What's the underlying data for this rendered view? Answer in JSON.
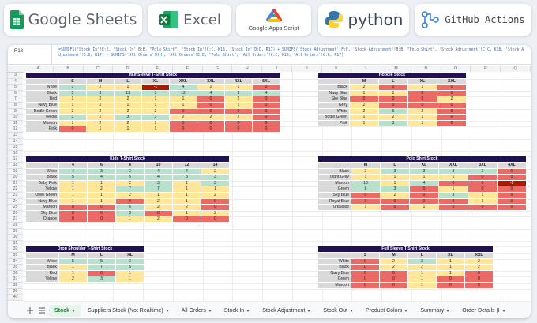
{
  "banner": {
    "logos": [
      "Google Sheets",
      "Excel",
      "Google Apps Script",
      "python",
      "GitHub Actions"
    ]
  },
  "sheet": {
    "cell_ref": "R18",
    "formula": "=SUMIFS('Stock In'!E:E, 'Stock In'!B:B, \"Polo Shirt\", 'Stock In'!C:C, K18, 'Stock In'!D:D, R17) + SUMIFS('Stock Adjustment'!F:F, 'Stock Adjustment'!B:B, \"Polo Shirt\", 'Stock Adjustment'!C:C, K18, 'Stock Adjustment'!D:D, R17) - SUMIFS('All Orders'!H:H, 'All Orders'!E:E, \"Polo Shirt\", 'All Orders'!C:C, K18, 'All Orders'!G:G, R17)",
    "columns": [
      "A",
      "B",
      "C",
      "D",
      "E",
      "F",
      "G",
      "H",
      "I",
      "J",
      "K",
      "L",
      "M",
      "N",
      "O",
      "P",
      "Q"
    ],
    "row_numbers": [
      3,
      4,
      5,
      6,
      7,
      8,
      9,
      10,
      11,
      12,
      13,
      14,
      15,
      16,
      17,
      18,
      19,
      20,
      21,
      22,
      23,
      24,
      25,
      26,
      27,
      28,
      29,
      30,
      31,
      32,
      33,
      34,
      35,
      36,
      37,
      38,
      39,
      40
    ],
    "tables": [
      {
        "title": "Half Sleeve T-Shirt Stock",
        "headers": [
          "S",
          "M",
          "L",
          "XL",
          "XXL",
          "3XL",
          "4XL",
          "5XL"
        ],
        "rows": [
          {
            "label": "White",
            "values": [
              3,
              2,
              1,
              -1,
              4,
              1,
              1,
              0
            ]
          },
          {
            "label": "Black",
            "values": [
              3,
              3,
              11,
              3,
              12,
              4,
              3,
              4
            ]
          },
          {
            "label": "Red",
            "values": [
              1,
              2,
              2,
              1,
              1,
              0,
              2,
              0
            ]
          },
          {
            "label": "Navy Blue",
            "values": [
              1,
              2,
              1,
              1,
              1,
              0,
              1,
              0
            ]
          },
          {
            "label": "Bottle Green",
            "values": [
              2,
              2,
              2,
              2,
              0,
              0,
              0,
              0
            ]
          },
          {
            "label": "Yellow",
            "values": [
              3,
              2,
              3,
              3,
              2,
              2,
              2,
              0
            ]
          },
          {
            "label": "Maroon",
            "values": [
              1,
              2,
              2,
              1,
              0,
              0,
              0,
              0
            ]
          },
          {
            "label": "Pink",
            "values": [
              0,
              1,
              1,
              1,
              0,
              0,
              0,
              0
            ]
          }
        ]
      },
      {
        "title": "Hoodie Stock",
        "headers": [
          "M",
          "L",
          "XL",
          "XXL"
        ],
        "rows": [
          {
            "label": "Black",
            "values": [
              2,
              0,
              1,
              0
            ]
          },
          {
            "label": "Navy Blue",
            "values": [
              1,
              1,
              0,
              0
            ]
          },
          {
            "label": "Sky Blue",
            "values": [
              0,
              0,
              0,
              2
            ]
          },
          {
            "label": "Grey",
            "values": [
              2,
              0,
              0,
              0
            ]
          },
          {
            "label": "White",
            "values": [
              2,
              5,
              2,
              0
            ]
          },
          {
            "label": "Bottle Green",
            "values": [
              1,
              2,
              1,
              0
            ]
          },
          {
            "label": "Pink",
            "values": [
              1,
              3,
              1,
              0
            ]
          }
        ]
      },
      {
        "title": "Kids T-Shirt Stock",
        "headers": [
          "4",
          "6",
          "8",
          "10",
          "12",
          "14"
        ],
        "rows": [
          {
            "label": "White",
            "values": [
              4,
              3,
              3,
              4,
              4,
              2
            ]
          },
          {
            "label": "Black",
            "values": [
              5,
              4,
              5,
              4,
              3,
              3
            ]
          },
          {
            "label": "Baby Pink",
            "values": [
              1,
              1,
              2,
              3,
              1,
              3
            ]
          },
          {
            "label": "Yellow",
            "values": [
              1,
              2,
              7,
              7,
              1,
              1
            ]
          },
          {
            "label": "Olive Green",
            "values": [
              1,
              1,
              2,
              1,
              1,
              2
            ]
          },
          {
            "label": "Navy Blue",
            "values": [
              1,
              1,
              0,
              2,
              1,
              0
            ]
          },
          {
            "label": "Maroon",
            "values": [
              0,
              0,
              6,
              2,
              2,
              0
            ]
          },
          {
            "label": "Sky Blue",
            "values": [
              0,
              0,
              3,
              0,
              1,
              2
            ]
          },
          {
            "label": "Orange",
            "values": [
              0,
              0,
              1,
              2,
              0,
              0
            ]
          }
        ]
      },
      {
        "title": "Polo Shirt Stock",
        "headers": [
          "M",
          "L",
          "XL",
          "XXL",
          "3XL",
          "4XL"
        ],
        "rows": [
          {
            "label": "Black",
            "values": [
              2,
              3,
              3,
              3,
              3,
              0
            ]
          },
          {
            "label": "Light Grey",
            "values": [
              1,
              1,
              1,
              1,
              0,
              0
            ]
          },
          {
            "label": "Maroon",
            "values": [
              16,
              1,
              4,
              0,
              0,
              -1
            ]
          },
          {
            "label": "Green",
            "values": [
              8,
              3,
              0,
              1,
              0,
              0
            ]
          },
          {
            "label": "Sky Blue",
            "values": [
              0,
              2,
              0,
              3,
              1,
              0
            ]
          },
          {
            "label": "Royal Blue",
            "values": [
              0,
              0,
              0,
              0,
              1,
              0
            ]
          },
          {
            "label": "Turquoise",
            "values": [
              1,
              0,
              1,
              0,
              0,
              0
            ]
          }
        ]
      },
      {
        "title": "Drop Shoulder T-Shirt Stock",
        "headers": [
          "M",
          "L",
          "XL"
        ],
        "rows": [
          {
            "label": "White",
            "values": [
              5,
              5,
              3
            ]
          },
          {
            "label": "Black",
            "values": [
              1,
              7,
              5
            ]
          },
          {
            "label": "Red",
            "values": [
              1,
              0,
              1
            ]
          },
          {
            "label": "Yellow",
            "values": [
              2,
              3,
              1
            ]
          }
        ]
      },
      {
        "title": "Full Sleeve T-Shirt Stock",
        "headers": [
          "S",
          "M",
          "L",
          "XL",
          "XXL"
        ],
        "rows": [
          {
            "label": "White",
            "values": [
              0,
              2,
              3,
              1,
              2
            ]
          },
          {
            "label": "Black",
            "values": [
              0,
              2,
              2,
              1,
              2
            ]
          },
          {
            "label": "Navy Blue",
            "values": [
              0,
              0,
              1,
              1,
              0
            ]
          },
          {
            "label": "Green",
            "values": [
              0,
              0,
              1,
              0,
              0
            ]
          },
          {
            "label": "Maroon",
            "values": [
              0,
              0,
              1,
              0,
              0
            ]
          }
        ]
      }
    ],
    "tabs": [
      "Stock",
      "Suppliers Stock (Not Realtime)",
      "All Orders",
      "Stock In",
      "Stock Adjustment",
      "Stock Out",
      "Product Colors",
      "Summary",
      "Order Details (I"
    ]
  }
}
